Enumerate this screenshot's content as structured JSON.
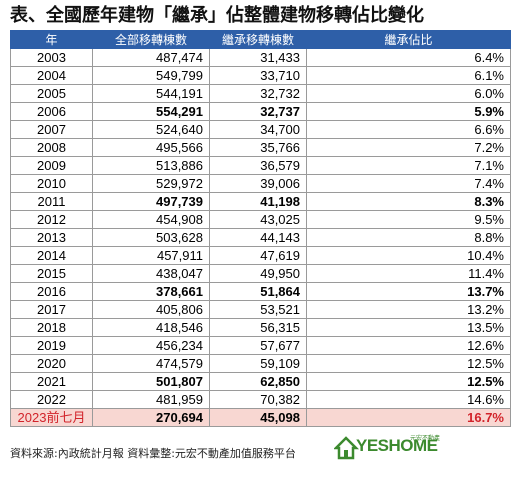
{
  "title": "表、全國歷年建物「繼承」佔整體建物移轉佔比變化",
  "table": {
    "headers": [
      "年",
      "全部移轉棟數",
      "繼承移轉棟數",
      "繼承佔比"
    ],
    "rows": [
      {
        "year": "2003",
        "total": "487,474",
        "inherit": "31,433",
        "pct": "6.4%",
        "bold": false
      },
      {
        "year": "2004",
        "total": "549,799",
        "inherit": "33,710",
        "pct": "6.1%",
        "bold": false
      },
      {
        "year": "2005",
        "total": "544,191",
        "inherit": "32,732",
        "pct": "6.0%",
        "bold": false
      },
      {
        "year": "2006",
        "total": "554,291",
        "inherit": "32,737",
        "pct": "5.9%",
        "bold": true
      },
      {
        "year": "2007",
        "total": "524,640",
        "inherit": "34,700",
        "pct": "6.6%",
        "bold": false
      },
      {
        "year": "2008",
        "total": "495,566",
        "inherit": "35,766",
        "pct": "7.2%",
        "bold": false
      },
      {
        "year": "2009",
        "total": "513,886",
        "inherit": "36,579",
        "pct": "7.1%",
        "bold": false
      },
      {
        "year": "2010",
        "total": "529,972",
        "inherit": "39,006",
        "pct": "7.4%",
        "bold": false
      },
      {
        "year": "2011",
        "total": "497,739",
        "inherit": "41,198",
        "pct": "8.3%",
        "bold": true
      },
      {
        "year": "2012",
        "total": "454,908",
        "inherit": "43,025",
        "pct": "9.5%",
        "bold": false
      },
      {
        "year": "2013",
        "total": "503,628",
        "inherit": "44,143",
        "pct": "8.8%",
        "bold": false
      },
      {
        "year": "2014",
        "total": "457,911",
        "inherit": "47,619",
        "pct": "10.4%",
        "bold": false
      },
      {
        "year": "2015",
        "total": "438,047",
        "inherit": "49,950",
        "pct": "11.4%",
        "bold": false
      },
      {
        "year": "2016",
        "total": "378,661",
        "inherit": "51,864",
        "pct": "13.7%",
        "bold": true
      },
      {
        "year": "2017",
        "total": "405,806",
        "inherit": "53,521",
        "pct": "13.2%",
        "bold": false
      },
      {
        "year": "2018",
        "total": "418,546",
        "inherit": "56,315",
        "pct": "13.5%",
        "bold": false
      },
      {
        "year": "2019",
        "total": "456,234",
        "inherit": "57,677",
        "pct": "12.6%",
        "bold": false
      },
      {
        "year": "2020",
        "total": "474,579",
        "inherit": "59,109",
        "pct": "12.5%",
        "bold": false
      },
      {
        "year": "2021",
        "total": "501,807",
        "inherit": "62,850",
        "pct": "12.5%",
        "bold": true
      },
      {
        "year": "2022",
        "total": "481,959",
        "inherit": "70,382",
        "pct": "14.6%",
        "bold": false
      },
      {
        "year": "2023前七月",
        "total": "270,694",
        "inherit": "45,098",
        "pct": "16.7%",
        "bold": true,
        "highlight": true
      }
    ]
  },
  "footer": "資料來源:內政統計月報 資料彙整:元宏不動產加值服務平台",
  "logo": {
    "text": "YESHOME",
    "sub": "元宏不動產"
  },
  "colors": {
    "header_bg": "#2e5fa8",
    "highlight_bg": "#f8d7d2",
    "highlight_text": "#d2232a",
    "logo": "#3c8a2e"
  }
}
